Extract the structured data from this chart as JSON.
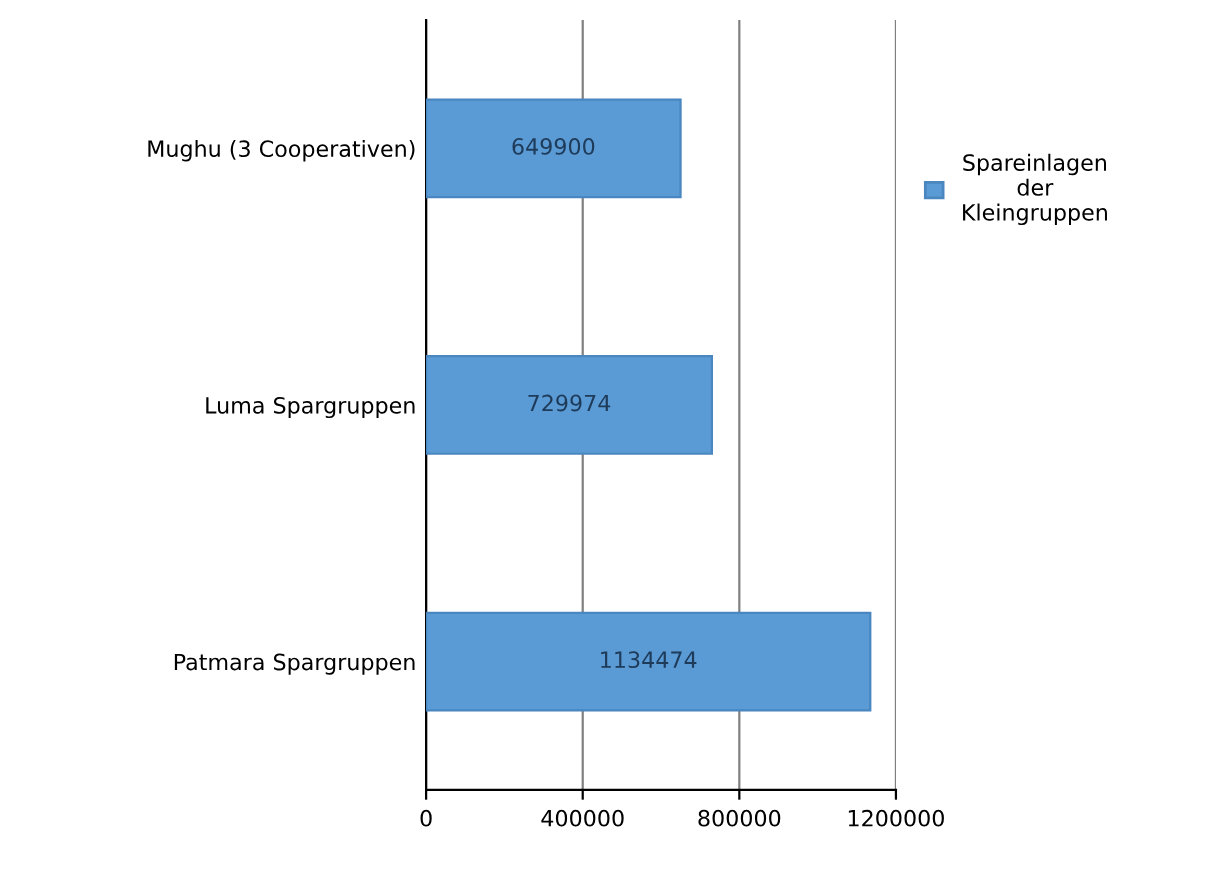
{
  "chart_data": {
    "type": "bar",
    "orientation": "horizontal",
    "categories": [
      "Mughu (3 Cooperativen)",
      "Luma Spargruppen",
      "Patmara Spargruppen"
    ],
    "series": [
      {
        "name": "Spareinlagen der Kleingruppen",
        "color": "#5b9bd5",
        "values": [
          649900,
          729974,
          1134474
        ]
      }
    ],
    "xlim": [
      0,
      1200000
    ],
    "xticks": [
      0,
      400000,
      800000,
      1200000
    ],
    "grid": "x",
    "legend": "right",
    "data_labels": true
  }
}
